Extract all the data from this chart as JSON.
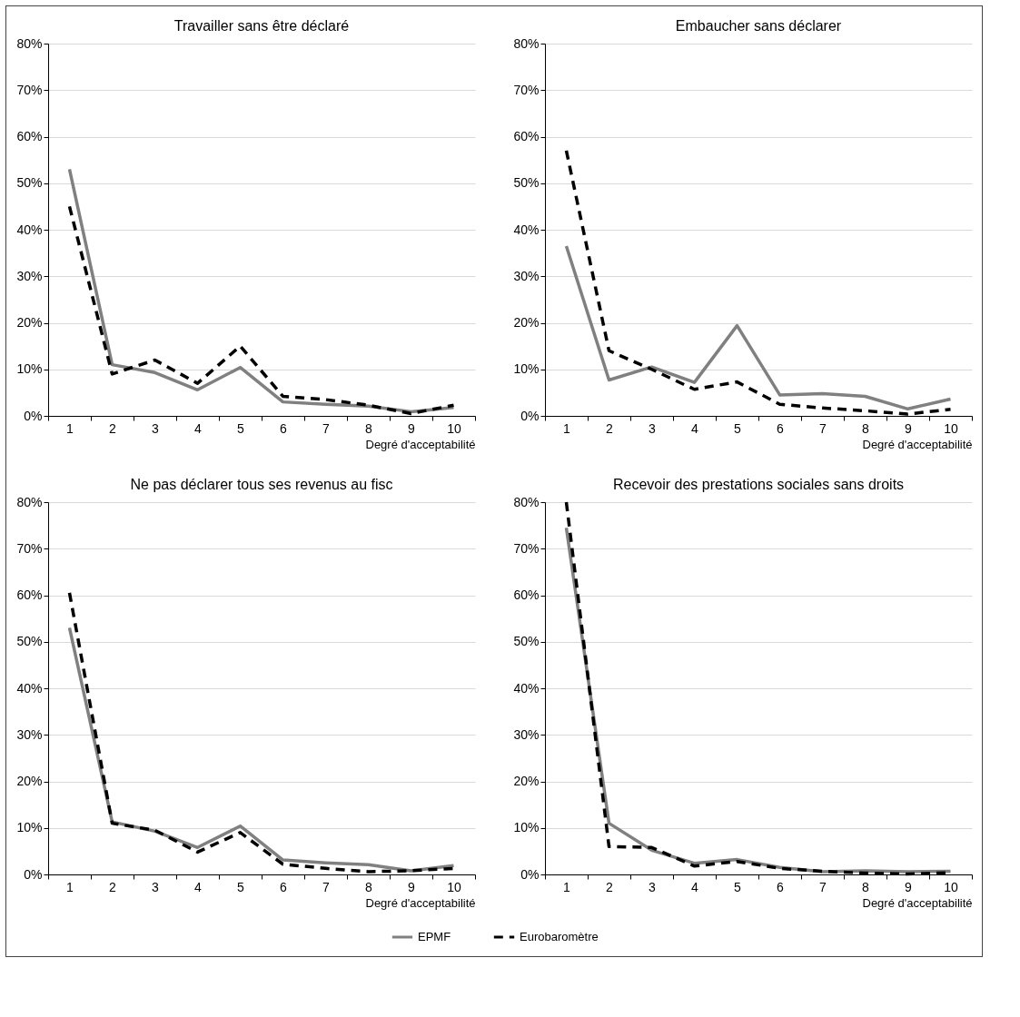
{
  "chart_data": [
    {
      "type": "line",
      "title": "Travailler sans être déclaré",
      "xlabel": "Degré d'acceptabilité",
      "categories": [
        "1",
        "2",
        "3",
        "4",
        "5",
        "6",
        "7",
        "8",
        "9",
        "10"
      ],
      "ylim": [
        0,
        80
      ],
      "yticks": [
        {
          "value": 0,
          "label": "0%"
        },
        {
          "value": 10,
          "label": "10%"
        },
        {
          "value": 20,
          "label": "20%"
        },
        {
          "value": 30,
          "label": "30%"
        },
        {
          "value": 40,
          "label": "40%"
        },
        {
          "value": 50,
          "label": "50%"
        },
        {
          "value": 60,
          "label": "60%"
        },
        {
          "value": 70,
          "label": "70%"
        },
        {
          "value": 80,
          "label": "80%"
        }
      ],
      "grid": "y",
      "legend": "bottom",
      "series": [
        {
          "name": "EPMF",
          "color": "#808080",
          "line_style": "solid",
          "values": [
            53,
            11,
            9.3,
            5.6,
            10.4,
            3,
            2.5,
            2.1,
            0.9,
            1.8
          ]
        },
        {
          "name": "Eurobaromètre",
          "color": "#000000",
          "line_style": "dashed",
          "values": [
            45,
            9,
            12,
            7,
            15,
            4.2,
            3.5,
            2.3,
            0.5,
            2.3
          ]
        }
      ]
    },
    {
      "type": "line",
      "title": "Embaucher sans déclarer",
      "xlabel": "Degré d'acceptabilité",
      "categories": [
        "1",
        "2",
        "3",
        "4",
        "5",
        "6",
        "7",
        "8",
        "9",
        "10"
      ],
      "ylim": [
        0,
        80
      ],
      "yticks": [
        {
          "value": 0,
          "label": "0%"
        },
        {
          "value": 10,
          "label": "10%"
        },
        {
          "value": 20,
          "label": "20%"
        },
        {
          "value": 30,
          "label": "30%"
        },
        {
          "value": 40,
          "label": "40%"
        },
        {
          "value": 50,
          "label": "50%"
        },
        {
          "value": 60,
          "label": "60%"
        },
        {
          "value": 70,
          "label": "70%"
        },
        {
          "value": 80,
          "label": "80%"
        }
      ],
      "grid": "y",
      "legend": "bottom",
      "series": [
        {
          "name": "EPMF",
          "color": "#808080",
          "line_style": "solid",
          "values": [
            36.5,
            7.7,
            10.5,
            7.2,
            19.4,
            4.5,
            4.8,
            4.2,
            1.5,
            3.6
          ]
        },
        {
          "name": "Eurobaromètre",
          "color": "#000000",
          "line_style": "dashed",
          "values": [
            57,
            14,
            10,
            5.7,
            7.3,
            2.5,
            1.7,
            1.1,
            0.4,
            1.4
          ]
        }
      ]
    },
    {
      "type": "line",
      "title": "Ne pas déclarer tous ses revenus au fisc",
      "xlabel": "Degré d'acceptabilité",
      "categories": [
        "1",
        "2",
        "3",
        "4",
        "5",
        "6",
        "7",
        "8",
        "9",
        "10"
      ],
      "ylim": [
        0,
        80
      ],
      "yticks": [
        {
          "value": 0,
          "label": "0%"
        },
        {
          "value": 10,
          "label": "10%"
        },
        {
          "value": 20,
          "label": "20%"
        },
        {
          "value": 30,
          "label": "30%"
        },
        {
          "value": 40,
          "label": "40%"
        },
        {
          "value": 50,
          "label": "50%"
        },
        {
          "value": 60,
          "label": "60%"
        },
        {
          "value": 70,
          "label": "70%"
        },
        {
          "value": 80,
          "label": "80%"
        }
      ],
      "grid": "y",
      "legend": "bottom",
      "series": [
        {
          "name": "EPMF",
          "color": "#808080",
          "line_style": "solid",
          "values": [
            53,
            11.3,
            9.3,
            5.8,
            10.4,
            3.1,
            2.5,
            2.1,
            0.8,
            1.9
          ]
        },
        {
          "name": "Eurobaromètre",
          "color": "#000000",
          "line_style": "dashed",
          "values": [
            60.5,
            11,
            9.5,
            4.8,
            9,
            2.2,
            1.3,
            0.6,
            0.8,
            1.3
          ]
        }
      ]
    },
    {
      "type": "line",
      "title": "Recevoir des prestations sociales sans droits",
      "xlabel": "Degré d'acceptabilité",
      "categories": [
        "1",
        "2",
        "3",
        "4",
        "5",
        "6",
        "7",
        "8",
        "9",
        "10"
      ],
      "ylim": [
        0,
        80
      ],
      "yticks": [
        {
          "value": 0,
          "label": "0%"
        },
        {
          "value": 10,
          "label": "10%"
        },
        {
          "value": 20,
          "label": "20%"
        },
        {
          "value": 30,
          "label": "30%"
        },
        {
          "value": 40,
          "label": "40%"
        },
        {
          "value": 50,
          "label": "50%"
        },
        {
          "value": 60,
          "label": "60%"
        },
        {
          "value": 70,
          "label": "70%"
        },
        {
          "value": 80,
          "label": "80%"
        }
      ],
      "grid": "y",
      "legend": "bottom",
      "series": [
        {
          "name": "EPMF",
          "color": "#808080",
          "line_style": "solid",
          "values": [
            74.5,
            11,
            5.2,
            2.4,
            3.2,
            1.5,
            0.6,
            0.8,
            0.6,
            0.7
          ]
        },
        {
          "name": "Eurobaromètre",
          "color": "#000000",
          "line_style": "dashed",
          "values": [
            80,
            6,
            5.8,
            1.8,
            2.8,
            1.3,
            0.7,
            0.3,
            0.1,
            0.4
          ]
        }
      ]
    }
  ]
}
